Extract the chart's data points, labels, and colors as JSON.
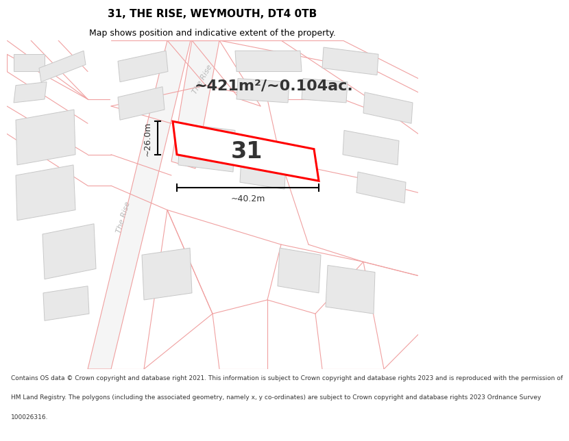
{
  "title": "31, THE RISE, WEYMOUTH, DT4 0TB",
  "subtitle": "Map shows position and indicative extent of the property.",
  "area_text": "~421m²/~0.104ac.",
  "dim_width": "~40.2m",
  "dim_height": "~26.0m",
  "property_number": "31",
  "footer_lines": [
    "Contains OS data © Crown copyright and database right 2021. This information is subject to Crown copyright and database rights 2023 and is reproduced with the permission of",
    "HM Land Registry. The polygons (including the associated geometry, namely x, y co-ordinates) are subject to Crown copyright and database rights 2023 Ordnance Survey",
    "100026316."
  ],
  "bg_color": "#ffffff",
  "map_bg": "#ffffff",
  "property_fill": "#ffffff",
  "property_edge": "#ff0000",
  "line_color": "#f0a0a0",
  "building_fill": "#e8e8e8",
  "building_edge": "#c8c8c8",
  "road_fill": "#f5f5f5",
  "road_label_color": "#b8b8b8",
  "title_fontsize": 11,
  "subtitle_fontsize": 9,
  "footer_fontsize": 6.5
}
